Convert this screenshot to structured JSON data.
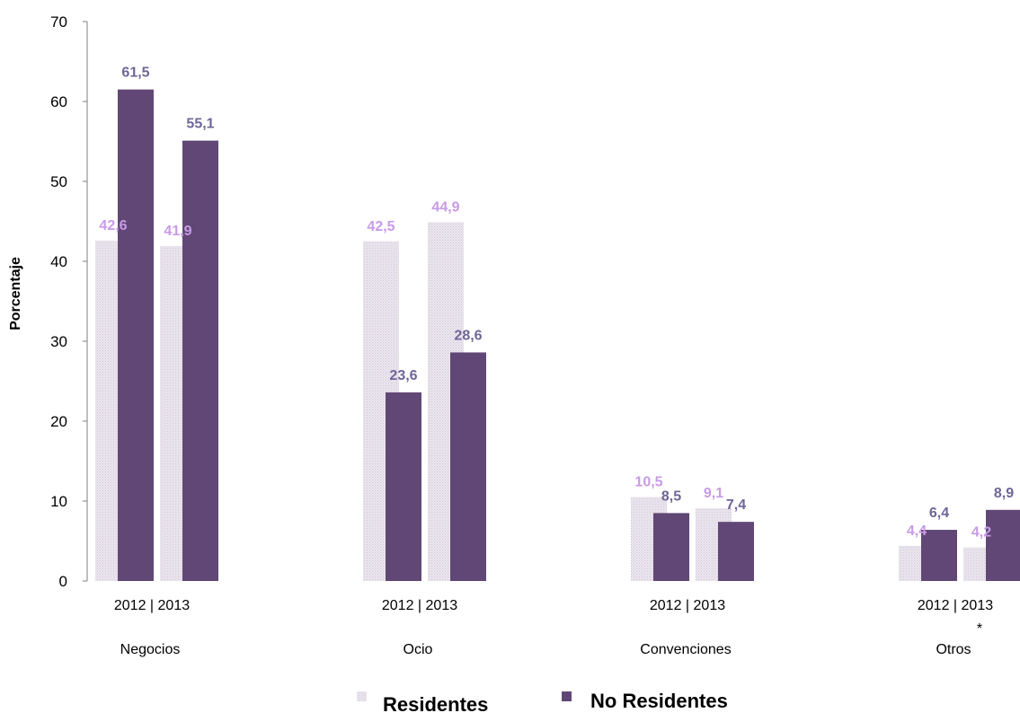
{
  "chart_data": {
    "type": "bar",
    "ylabel": "Porcentaje",
    "ylim": [
      0,
      70
    ],
    "yticks": [
      0,
      10,
      20,
      30,
      40,
      50,
      60,
      70
    ],
    "legend_position": "bottom",
    "grid": false,
    "groups": [
      {
        "name": "Negocios",
        "year_label": "2012  |  2013",
        "note": "",
        "bars": [
          {
            "year": "2012",
            "series": "Residentes",
            "value": 42.6,
            "label": "42,6"
          },
          {
            "year": "2012",
            "series": "No Residentes",
            "value": 61.5,
            "label": "61,5"
          },
          {
            "year": "2013",
            "series": "Residentes",
            "value": 41.9,
            "label": "41,9"
          },
          {
            "year": "2013",
            "series": "No Residentes",
            "value": 55.1,
            "label": "55,1"
          }
        ]
      },
      {
        "name": "Ocio",
        "year_label": "2012  |  2013",
        "note": "",
        "bars": [
          {
            "year": "2012",
            "series": "Residentes",
            "value": 42.5,
            "label": "42,5"
          },
          {
            "year": "2012",
            "series": "No Residentes",
            "value": 23.6,
            "label": "23,6"
          },
          {
            "year": "2013",
            "series": "Residentes",
            "value": 44.9,
            "label": "44,9"
          },
          {
            "year": "2013",
            "series": "No Residentes",
            "value": 28.6,
            "label": "28,6"
          }
        ]
      },
      {
        "name": "Convenciones",
        "year_label": "2012  |  2013",
        "note": "",
        "bars": [
          {
            "year": "2012",
            "series": "Residentes",
            "value": 10.5,
            "label": "10,5"
          },
          {
            "year": "2012",
            "series": "No Residentes",
            "value": 8.5,
            "label": "8,5"
          },
          {
            "year": "2013",
            "series": "Residentes",
            "value": 9.1,
            "label": "9,1"
          },
          {
            "year": "2013",
            "series": "No Residentes",
            "value": 7.4,
            "label": "7,4"
          }
        ]
      },
      {
        "name": "Otros",
        "year_label": "2012  |  2013",
        "note": "*",
        "bars": [
          {
            "year": "2012",
            "series": "Residentes",
            "value": 4.4,
            "label": "4,4"
          },
          {
            "year": "2012",
            "series": "No Residentes",
            "value": 6.4,
            "label": "6,4"
          },
          {
            "year": "2013",
            "series": "Residentes",
            "value": 4.2,
            "label": "4,2"
          },
          {
            "year": "2013",
            "series": "No Residentes",
            "value": 8.9,
            "label": "8,9"
          }
        ]
      }
    ],
    "series": [
      {
        "name": "Residentes",
        "color": "#e2dce6",
        "label_color": "#c79be6",
        "pattern": "dotted"
      },
      {
        "name": "No Residentes",
        "color": "#614776",
        "label_color": "#6f6598",
        "pattern": "solid"
      }
    ]
  }
}
